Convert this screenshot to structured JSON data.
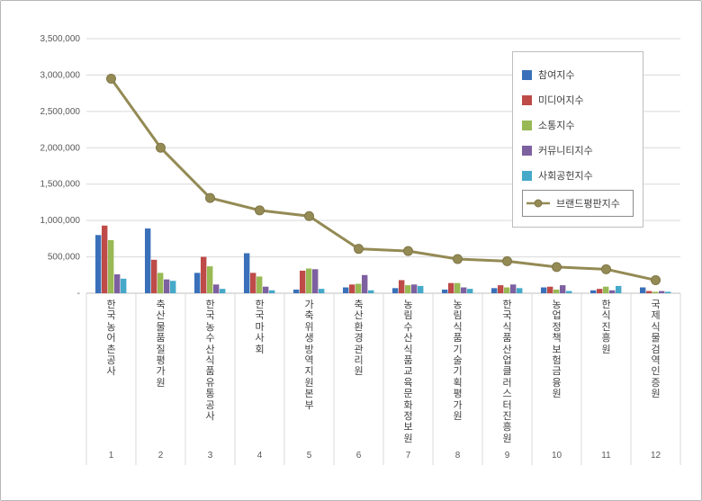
{
  "chart_data": {
    "type": "bar",
    "title": "",
    "note": "grouped bar chart with overlaid line (brand reputation index by organization)",
    "categories": [
      "한국농어촌공사",
      "축산물품질평가원",
      "한국농수산식품유통공사",
      "한국마사회",
      "가축위생방역지원본부",
      "축산환경관리원",
      "농림수산식품교육문화정보원",
      "농림식품기술기획평가원",
      "한국식품산업클러스터진흥원",
      "농업정책보험금융원",
      "한식진흥원",
      "국제식물검역인증원"
    ],
    "ranks": [
      "1",
      "2",
      "3",
      "4",
      "5",
      "6",
      "7",
      "8",
      "9",
      "10",
      "11",
      "12"
    ],
    "series": [
      {
        "name": "참여지수",
        "type": "bar",
        "color": "#3a70b9",
        "values": [
          800000,
          890000,
          280000,
          550000,
          50000,
          80000,
          70000,
          50000,
          70000,
          80000,
          40000,
          80000
        ]
      },
      {
        "name": "미디어지수",
        "type": "bar",
        "color": "#be4b48",
        "values": [
          930000,
          460000,
          500000,
          280000,
          310000,
          120000,
          180000,
          140000,
          110000,
          90000,
          60000,
          30000
        ]
      },
      {
        "name": "소통지수",
        "type": "bar",
        "color": "#98b954",
        "values": [
          730000,
          280000,
          370000,
          230000,
          340000,
          130000,
          110000,
          140000,
          80000,
          50000,
          90000,
          20000
        ]
      },
      {
        "name": "커뮤니티지수",
        "type": "bar",
        "color": "#7d60a0",
        "values": [
          260000,
          190000,
          120000,
          90000,
          330000,
          250000,
          120000,
          80000,
          120000,
          110000,
          40000,
          30000
        ]
      },
      {
        "name": "사회공헌지수",
        "type": "bar",
        "color": "#45a9c9",
        "values": [
          200000,
          170000,
          60000,
          40000,
          60000,
          40000,
          100000,
          60000,
          70000,
          30000,
          100000,
          20000
        ]
      }
    ],
    "line_series": {
      "name": "브랜드평판지수",
      "type": "line",
      "color": "#948a54",
      "values": [
        2950000,
        2000000,
        1310000,
        1140000,
        1060000,
        610000,
        580000,
        470000,
        440000,
        360000,
        330000,
        180000
      ]
    },
    "y_axis": {
      "min": 0,
      "max": 3500000,
      "step": 500000,
      "tick_labels": [
        "-",
        "500,000",
        "1,000,000",
        "1,500,000",
        "2,000,000",
        "2,500,000",
        "3,000,000",
        "3,500,000"
      ]
    },
    "grid": true,
    "legend_position": "inside-top-right",
    "colors": {
      "gridline": "#d9d9d9",
      "axis_line": "#bfbfbf",
      "tick_text": "#595959",
      "label_text": "#404040",
      "legend_border": "#bdbdbd"
    }
  }
}
